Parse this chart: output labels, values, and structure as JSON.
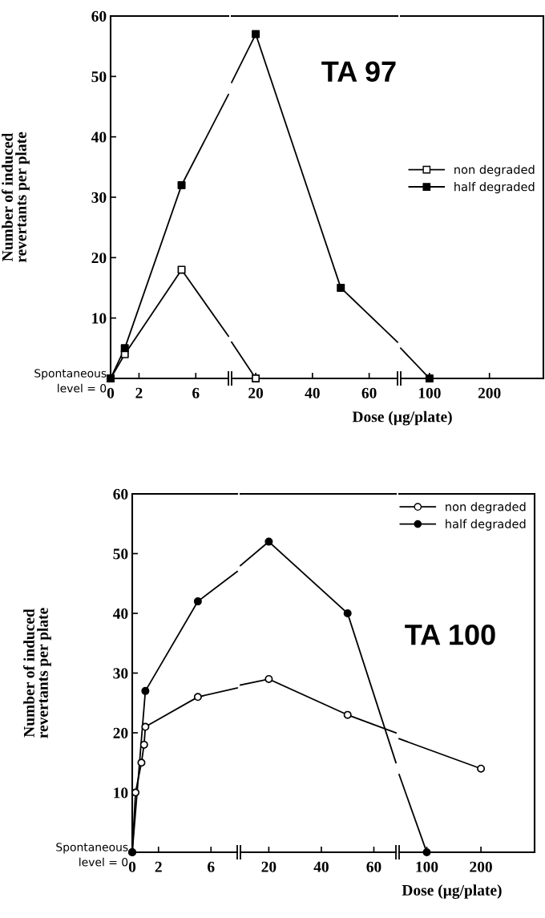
{
  "chart_data": [
    {
      "type": "line",
      "ylabel": "Number of induced\nrevertants per plate",
      "series": [
        {
          "color": "#000000",
          "x": [
            0,
            1,
            5
          ],
          "values": [
            0,
            4,
            18
          ]
        },
        {
          "color": "#000000",
          "x": [
            0,
            1,
            5
          ],
          "values": [
            0,
            5,
            32
          ]
        },
        {
          "color": "#000000",
          "marker": "none",
          "x": [
            5,
            8.3
          ],
          "values": [
            18,
            7
          ]
        },
        {
          "color": "#000000",
          "marker": "none",
          "x": [
            5,
            8.3
          ],
          "values": [
            32,
            47
          ]
        }
      ],
      "xlim": [
        0,
        8.3
      ],
      "xticks": [
        0,
        2,
        6
      ],
      "ylim": [
        0,
        60
      ],
      "yticks": [
        {
          "value": 0,
          "label": "Spontaneous\nlevel = 0"
        },
        10,
        20,
        30,
        40,
        50,
        60
      ],
      "grid": false,
      "marker": "square",
      "line_style": "solid"
    },
    {
      "type": "line",
      "annotations": [
        "TA 97"
      ],
      "series": [
        {
          "color": "#000000",
          "x": [
            20
          ],
          "values": [
            0
          ]
        },
        {
          "color": "#000000",
          "x": [
            20,
            50
          ],
          "values": [
            57,
            15
          ]
        },
        {
          "color": "#000000",
          "marker": "none",
          "x": [
            11.5,
            20
          ],
          "values": [
            6,
            0
          ]
        },
        {
          "color": "#000000",
          "marker": "none",
          "x": [
            11.5,
            20
          ],
          "values": [
            49,
            57
          ]
        },
        {
          "color": "#000000",
          "marker": "none",
          "x": [
            50,
            70
          ],
          "values": [
            15,
            6
          ]
        }
      ],
      "xlim": [
        11.5,
        70
      ],
      "xticks": [
        20,
        40,
        60
      ],
      "ylim": [
        0,
        60
      ],
      "tick_labels": "x",
      "grid": false,
      "marker": "square",
      "line_style": "solid"
    },
    {
      "type": "line",
      "xlabel": "Dose (µg/plate)",
      "series": [
        {
          "name": "non degraded",
          "color": "#000000"
        },
        {
          "name": "half degraded",
          "color": "#000000",
          "x": [
            100
          ],
          "values": [
            0
          ]
        },
        {
          "color": "#000000",
          "marker": "none",
          "x": [
            52,
            100
          ],
          "values": [
            5,
            0
          ]
        }
      ],
      "xlim": [
        52,
        290
      ],
      "xticks": [
        100,
        200
      ],
      "ylim": [
        0,
        60
      ],
      "tick_labels": "x",
      "grid": false,
      "legend": "right",
      "marker": "square",
      "line_style": "solid"
    },
    {
      "type": "line",
      "ylabel": "Number of induced\nrevertants per plate",
      "series": [
        {
          "color": "#000000",
          "x": [
            0,
            0.25,
            0.7,
            0.9,
            1,
            5
          ],
          "values": [
            0,
            10,
            15,
            18,
            21,
            26
          ]
        },
        {
          "color": "#000000",
          "x": [
            0,
            1,
            5
          ],
          "values": [
            0,
            27,
            42
          ]
        },
        {
          "color": "#000000",
          "marker": "none",
          "x": [
            5,
            8
          ],
          "values": [
            26,
            27.5
          ]
        },
        {
          "color": "#000000",
          "marker": "none",
          "x": [
            5,
            8
          ],
          "values": [
            42,
            47
          ]
        }
      ],
      "xlim": [
        0,
        8
      ],
      "xticks": [
        0,
        2,
        6
      ],
      "ylim": [
        0,
        60
      ],
      "yticks": [
        {
          "value": 0,
          "label": "Spontaneous\nlevel = 0"
        },
        10,
        20,
        30,
        40,
        50,
        60
      ],
      "grid": false,
      "marker": "circle",
      "line_style": "solid"
    },
    {
      "type": "line",
      "series": [
        {
          "color": "#000000",
          "x": [
            20,
            50
          ],
          "values": [
            29,
            23
          ]
        },
        {
          "color": "#000000",
          "x": [
            20,
            50
          ],
          "values": [
            52,
            40
          ]
        },
        {
          "color": "#000000",
          "marker": "none",
          "x": [
            9.2,
            20
          ],
          "values": [
            28,
            29
          ]
        },
        {
          "color": "#000000",
          "marker": "none",
          "x": [
            9.2,
            20
          ],
          "values": [
            48,
            52
          ]
        },
        {
          "color": "#000000",
          "marker": "none",
          "x": [
            50,
            68.4
          ],
          "values": [
            23,
            20
          ]
        },
        {
          "color": "#000000",
          "marker": "none",
          "x": [
            50,
            68.4
          ],
          "values": [
            40,
            15
          ]
        }
      ],
      "xlim": [
        9.2,
        68.4
      ],
      "xticks": [
        20,
        40,
        60
      ],
      "ylim": [
        0,
        60
      ],
      "tick_labels": "x",
      "grid": false,
      "marker": "circle",
      "line_style": "solid"
    },
    {
      "type": "line",
      "xlabel": "Dose (µg/plate)",
      "annotations": [
        "TA 100"
      ],
      "series": [
        {
          "name": "non degraded",
          "color": "#000000",
          "x": [
            200
          ],
          "values": [
            14
          ]
        },
        {
          "name": "half degraded",
          "color": "#000000",
          "x": [
            100
          ],
          "values": [
            0
          ]
        },
        {
          "color": "#000000",
          "marker": "none",
          "x": [
            49,
            200
          ],
          "values": [
            19,
            14
          ]
        },
        {
          "color": "#000000",
          "marker": "none",
          "x": [
            49,
            100
          ],
          "values": [
            13,
            0
          ]
        }
      ],
      "xlim": [
        49,
        299
      ],
      "xticks": [
        100,
        200
      ],
      "ylim": [
        0,
        60
      ],
      "tick_labels": "x",
      "grid": false,
      "legend": "top right",
      "marker": "circle",
      "line_style": "solid"
    }
  ]
}
